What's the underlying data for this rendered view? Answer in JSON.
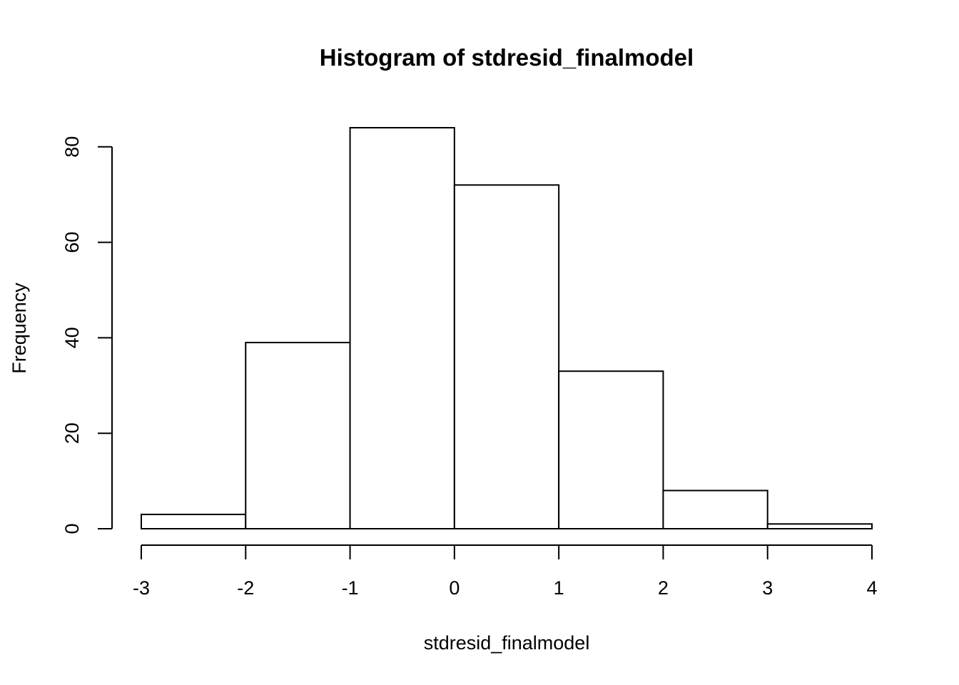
{
  "chart_data": {
    "type": "bar",
    "title": "Histogram of stdresid_finalmodel",
    "xlabel": "stdresid_finalmodel",
    "ylabel": "Frequency",
    "bins": [
      {
        "from": -3,
        "to": -2,
        "count": 3
      },
      {
        "from": -2,
        "to": -1,
        "count": 39
      },
      {
        "from": -1,
        "to": 0,
        "count": 84
      },
      {
        "from": 0,
        "to": 1,
        "count": 72
      },
      {
        "from": 1,
        "to": 2,
        "count": 33
      },
      {
        "from": 2,
        "to": 3,
        "count": 8
      },
      {
        "from": 3,
        "to": 4,
        "count": 1
      }
    ],
    "xlim": [
      -3,
      4
    ],
    "ylim": [
      0,
      84
    ],
    "x_ticks": [
      "-3",
      "-2",
      "-1",
      "0",
      "1",
      "2",
      "3",
      "4"
    ],
    "y_ticks": [
      "0",
      "20",
      "40",
      "60",
      "80"
    ],
    "grid": false,
    "bar_fill": "#ffffff",
    "bar_stroke": "#000000"
  }
}
